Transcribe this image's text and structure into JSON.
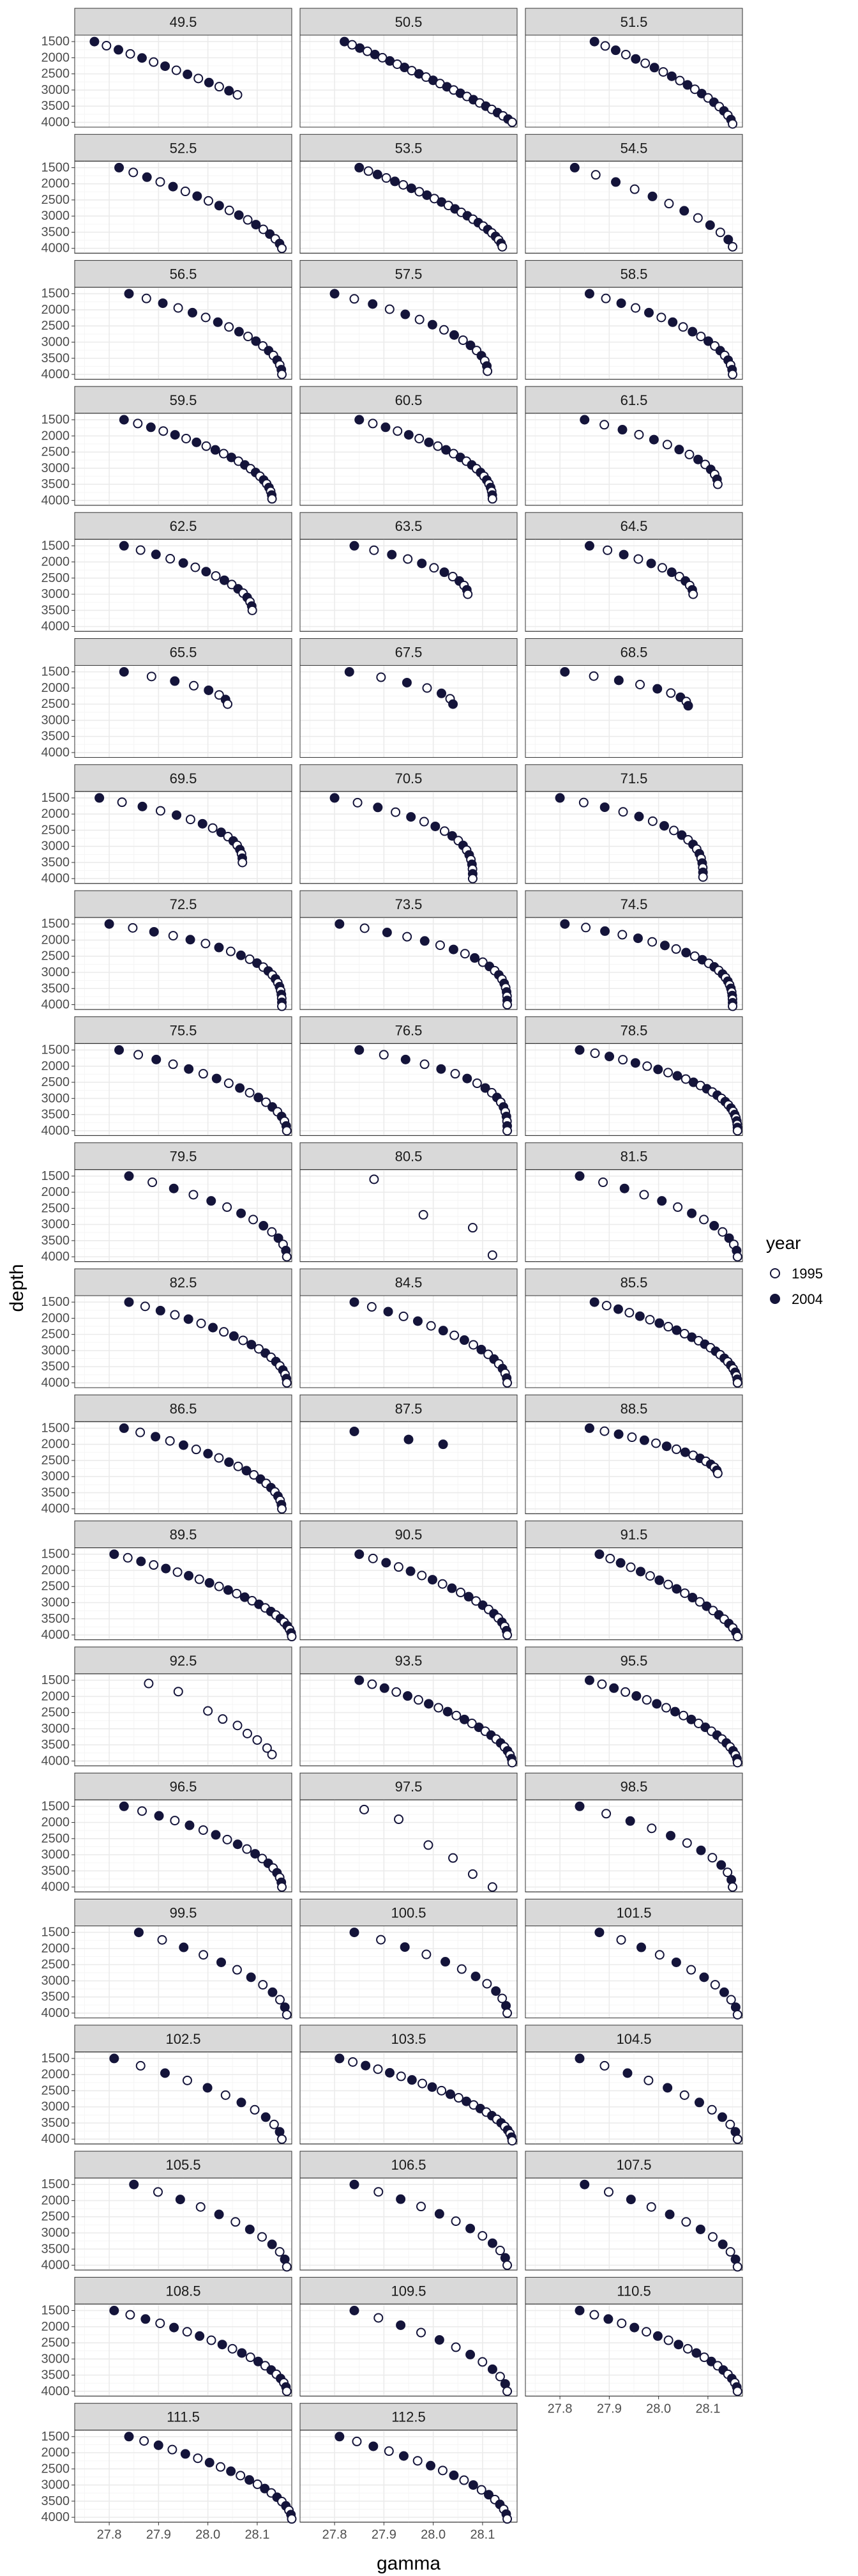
{
  "chart_data": {
    "type": "scatter",
    "xlabel": "gamma",
    "ylabel": "depth",
    "xlim": [
      27.73,
      28.17
    ],
    "ylim": [
      1300,
      4150
    ],
    "x_ticks": [
      27.8,
      27.9,
      28.0,
      28.1
    ],
    "y_ticks": [
      1500,
      2000,
      2500,
      3000,
      3500,
      4000
    ],
    "y_reversed": true,
    "grid": true,
    "facet_columns": 3,
    "legend": {
      "title": "year",
      "position": "right",
      "entries": [
        {
          "label": "1995",
          "marker": "open-circle"
        },
        {
          "label": "2004",
          "marker": "filled-circle"
        }
      ]
    },
    "colors": {
      "strip_bg": "#d9d9d9",
      "point_fill_2004": "#14143a",
      "point_stroke": "#14143a",
      "point_fill_1995": "#ffffff",
      "grid_major": "#ebebeb",
      "grid_minor": "#f5f5f5",
      "panel_border": "#333333"
    },
    "panels": [
      {
        "label": "49.5",
        "y1995": [],
        "y2004": [],
        "shape": {
          "x0": 27.77,
          "x1": 28.06,
          "y0": 1500,
          "y1": 3150,
          "n": 14,
          "k": 1.1
        }
      },
      {
        "label": "50.5",
        "shape": {
          "x0": 27.82,
          "x1": 28.16,
          "y0": 1500,
          "y1": 4000,
          "n": 26,
          "k": 1.15
        }
      },
      {
        "label": "51.5",
        "shape": {
          "x0": 27.87,
          "x1": 28.15,
          "y0": 1500,
          "y1": 4050,
          "n": 20,
          "k": 1.5
        }
      },
      {
        "label": "52.5",
        "shape": {
          "x0": 27.82,
          "x1": 28.15,
          "y0": 1500,
          "y1": 4000,
          "n": 18,
          "k": 1.5
        }
      },
      {
        "label": "53.5",
        "shape": {
          "x0": 27.85,
          "x1": 28.14,
          "y0": 1500,
          "y1": 3950,
          "n": 24,
          "k": 1.5
        }
      },
      {
        "label": "54.5",
        "shape": {
          "x0": 27.83,
          "x1": 28.15,
          "y0": 1500,
          "y1": 3950,
          "n": 12,
          "k": 1.5
        }
      },
      {
        "label": "56.5",
        "shape": {
          "x0": 27.84,
          "x1": 28.15,
          "y0": 1500,
          "y1": 4000,
          "n": 18,
          "k": 2
        }
      },
      {
        "label": "57.5",
        "shape": {
          "x0": 27.8,
          "x1": 28.11,
          "y0": 1500,
          "y1": 3900,
          "n": 16,
          "k": 2
        }
      },
      {
        "label": "58.5",
        "shape": {
          "x0": 27.86,
          "x1": 28.15,
          "y0": 1500,
          "y1": 4000,
          "n": 18,
          "k": 2
        }
      },
      {
        "label": "59.5",
        "shape": {
          "x0": 27.83,
          "x1": 28.13,
          "y0": 1500,
          "y1": 3950,
          "n": 22,
          "k": 2
        }
      },
      {
        "label": "60.5",
        "shape": {
          "x0": 27.85,
          "x1": 28.12,
          "y0": 1500,
          "y1": 3950,
          "n": 22,
          "k": 2.2
        }
      },
      {
        "label": "61.5",
        "shape": {
          "x0": 27.85,
          "x1": 28.12,
          "y0": 1500,
          "y1": 3500,
          "n": 14,
          "k": 2
        }
      },
      {
        "label": "62.5",
        "shape": {
          "x0": 27.83,
          "x1": 28.09,
          "y0": 1500,
          "y1": 3500,
          "n": 16,
          "k": 2
        }
      },
      {
        "label": "63.5",
        "shape": {
          "x0": 27.84,
          "x1": 28.07,
          "y0": 1500,
          "y1": 3000,
          "n": 12,
          "k": 2
        }
      },
      {
        "label": "64.5",
        "shape": {
          "x0": 27.86,
          "x1": 28.07,
          "y0": 1500,
          "y1": 3000,
          "n": 12,
          "k": 2
        }
      },
      {
        "label": "65.5",
        "shape": {
          "x0": 27.83,
          "x1": 28.04,
          "y0": 1500,
          "y1": 2500,
          "n": 8,
          "k": 2
        }
      },
      {
        "label": "67.5",
        "shape": {
          "x0": 27.83,
          "x1": 28.04,
          "y0": 1500,
          "y1": 2500,
          "n": 7,
          "k": 2
        }
      },
      {
        "label": "68.5",
        "shape": {
          "x0": 27.81,
          "x1": 28.06,
          "y0": 1500,
          "y1": 2550,
          "n": 9,
          "k": 2
        }
      },
      {
        "label": "69.5",
        "shape": {
          "x0": 27.78,
          "x1": 28.07,
          "y0": 1500,
          "y1": 3500,
          "n": 16,
          "k": 2.5
        }
      },
      {
        "label": "70.5",
        "shape": {
          "x0": 27.8,
          "x1": 28.08,
          "y0": 1500,
          "y1": 4000,
          "n": 18,
          "k": 3
        }
      },
      {
        "label": "71.5",
        "shape": {
          "x0": 27.8,
          "x1": 28.09,
          "y0": 1500,
          "y1": 3950,
          "n": 18,
          "k": 3
        }
      },
      {
        "label": "72.5",
        "shape": {
          "x0": 27.8,
          "x1": 28.15,
          "y0": 1500,
          "y1": 4050,
          "n": 22,
          "k": 3
        }
      },
      {
        "label": "73.5",
        "shape": {
          "x0": 27.81,
          "x1": 28.15,
          "y0": 1500,
          "y1": 4000,
          "n": 20,
          "k": 3
        }
      },
      {
        "label": "74.5",
        "shape": {
          "x0": 27.81,
          "x1": 28.15,
          "y0": 1500,
          "y1": 4050,
          "n": 24,
          "k": 3
        }
      },
      {
        "label": "75.5",
        "shape": {
          "x0": 27.82,
          "x1": 28.16,
          "y0": 1500,
          "y1": 4000,
          "n": 18,
          "k": 2
        }
      },
      {
        "label": "76.5",
        "shape": {
          "x0": 27.85,
          "x1": 28.15,
          "y0": 1500,
          "y1": 4000,
          "n": 18,
          "k": 3
        }
      },
      {
        "label": "78.5",
        "shape": {
          "x0": 27.84,
          "x1": 28.16,
          "y0": 1500,
          "y1": 4000,
          "n": 26,
          "k": 2.5
        }
      },
      {
        "label": "79.5",
        "shape": {
          "x0": 27.84,
          "x1": 28.16,
          "y0": 1500,
          "y1": 4000,
          "n": 14,
          "k": 2
        }
      },
      {
        "label": "80.5",
        "y1995_points": [
          [
            27.88,
            1600
          ],
          [
            27.98,
            2700
          ],
          [
            28.08,
            3100
          ],
          [
            28.12,
            3950
          ]
        ]
      },
      {
        "label": "81.5",
        "shape": {
          "x0": 27.84,
          "x1": 28.16,
          "y0": 1500,
          "y1": 4000,
          "n": 14,
          "k": 2
        }
      },
      {
        "label": "82.5",
        "shape": {
          "x0": 27.84,
          "x1": 28.16,
          "y0": 1500,
          "y1": 4000,
          "n": 20,
          "k": 2
        }
      },
      {
        "label": "84.5",
        "shape": {
          "x0": 27.84,
          "x1": 28.15,
          "y0": 1500,
          "y1": 4000,
          "n": 18,
          "k": 2
        }
      },
      {
        "label": "85.5",
        "shape": {
          "x0": 27.87,
          "x1": 28.16,
          "y0": 1500,
          "y1": 4000,
          "n": 24,
          "k": 2
        }
      },
      {
        "label": "86.5",
        "shape": {
          "x0": 27.83,
          "x1": 28.15,
          "y0": 1500,
          "y1": 4000,
          "n": 20,
          "k": 2
        }
      },
      {
        "label": "87.5",
        "y2004_points": [
          [
            27.84,
            1600
          ],
          [
            27.95,
            1850
          ],
          [
            28.02,
            2000
          ]
        ]
      },
      {
        "label": "88.5",
        "shape": {
          "x0": 27.86,
          "x1": 28.12,
          "y0": 1500,
          "y1": 2900,
          "n": 16,
          "k": 1.8
        }
      },
      {
        "label": "89.5",
        "shape": {
          "x0": 27.81,
          "x1": 28.17,
          "y0": 1500,
          "y1": 4050,
          "n": 24,
          "k": 1.8
        }
      },
      {
        "label": "90.5",
        "shape": {
          "x0": 27.85,
          "x1": 28.15,
          "y0": 1500,
          "y1": 4000,
          "n": 20,
          "k": 1.8
        }
      },
      {
        "label": "91.5",
        "shape": {
          "x0": 27.88,
          "x1": 28.16,
          "y0": 1500,
          "y1": 4050,
          "n": 20,
          "k": 1.5
        }
      },
      {
        "label": "92.5",
        "y1995_points": [
          [
            27.88,
            1600
          ],
          [
            27.94,
            1850
          ],
          [
            28.0,
            2450
          ],
          [
            28.03,
            2700
          ],
          [
            28.06,
            2900
          ],
          [
            28.08,
            3150
          ],
          [
            28.1,
            3350
          ],
          [
            28.12,
            3600
          ],
          [
            28.13,
            3800
          ]
        ]
      },
      {
        "label": "93.5",
        "shape": {
          "x0": 27.85,
          "x1": 28.16,
          "y0": 1500,
          "y1": 4050,
          "n": 22,
          "k": 1.8
        }
      },
      {
        "label": "95.5",
        "shape": {
          "x0": 27.86,
          "x1": 28.16,
          "y0": 1500,
          "y1": 4050,
          "n": 22,
          "k": 1.8
        }
      },
      {
        "label": "96.5",
        "shape": {
          "x0": 27.83,
          "x1": 28.15,
          "y0": 1500,
          "y1": 4000,
          "n": 18,
          "k": 2
        }
      },
      {
        "label": "97.5",
        "y1995_points": [
          [
            27.86,
            1600
          ],
          [
            27.93,
            1900
          ],
          [
            27.99,
            2700
          ],
          [
            28.04,
            3100
          ],
          [
            28.08,
            3600
          ],
          [
            28.12,
            4000
          ]
        ]
      },
      {
        "label": "98.5",
        "shape": {
          "x0": 27.84,
          "x1": 28.15,
          "y0": 1500,
          "y1": 4000,
          "n": 12,
          "k": 2
        }
      },
      {
        "label": "99.5",
        "shape": {
          "x0": 27.86,
          "x1": 28.16,
          "y0": 1500,
          "y1": 4050,
          "n": 12,
          "k": 1.8
        }
      },
      {
        "label": "100.5",
        "shape": {
          "x0": 27.84,
          "x1": 28.15,
          "y0": 1500,
          "y1": 4000,
          "n": 12,
          "k": 2
        }
      },
      {
        "label": "101.5",
        "shape": {
          "x0": 27.88,
          "x1": 28.16,
          "y0": 1500,
          "y1": 4050,
          "n": 12,
          "k": 1.8
        }
      },
      {
        "label": "102.5",
        "shape": {
          "x0": 27.81,
          "x1": 28.15,
          "y0": 1500,
          "y1": 4000,
          "n": 12,
          "k": 1.8
        }
      },
      {
        "label": "103.5",
        "shape": {
          "x0": 27.81,
          "x1": 28.16,
          "y0": 1500,
          "y1": 4050,
          "n": 24,
          "k": 1.8
        }
      },
      {
        "label": "104.5",
        "shape": {
          "x0": 27.84,
          "x1": 28.16,
          "y0": 1500,
          "y1": 4000,
          "n": 12,
          "k": 1.8
        }
      },
      {
        "label": "105.5",
        "shape": {
          "x0": 27.85,
          "x1": 28.16,
          "y0": 1500,
          "y1": 4050,
          "n": 12,
          "k": 1.8
        }
      },
      {
        "label": "106.5",
        "shape": {
          "x0": 27.84,
          "x1": 28.15,
          "y0": 1500,
          "y1": 4000,
          "n": 12,
          "k": 1.8
        }
      },
      {
        "label": "107.5",
        "shape": {
          "x0": 27.85,
          "x1": 28.16,
          "y0": 1500,
          "y1": 4050,
          "n": 12,
          "k": 1.8
        }
      },
      {
        "label": "108.5",
        "shape": {
          "x0": 27.81,
          "x1": 28.16,
          "y0": 1500,
          "y1": 4000,
          "n": 20,
          "k": 1.8
        }
      },
      {
        "label": "109.5",
        "shape": {
          "x0": 27.84,
          "x1": 28.15,
          "y0": 1500,
          "y1": 4000,
          "n": 12,
          "k": 1.8
        }
      },
      {
        "label": "110.5",
        "shape": {
          "x0": 27.84,
          "x1": 28.16,
          "y0": 1500,
          "y1": 4000,
          "n": 20,
          "k": 1.8
        }
      },
      {
        "label": "111.5",
        "shape": {
          "x0": 27.84,
          "x1": 28.17,
          "y0": 1500,
          "y1": 4050,
          "n": 20,
          "k": 1.8
        }
      },
      {
        "label": "112.5",
        "shape": {
          "x0": 27.81,
          "x1": 28.15,
          "y0": 1500,
          "y1": 4050,
          "n": 18,
          "k": 1.8
        }
      }
    ]
  }
}
